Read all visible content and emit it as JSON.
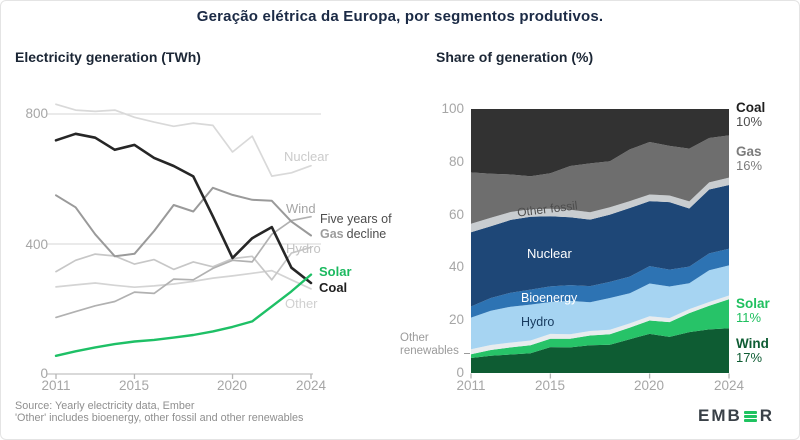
{
  "title": "Geração elétrica da Europa, por segmentos produtivos.",
  "source": {
    "line1": "Source: Yearly electricity data, Ember",
    "line2": "'Other' includes bioenergy, other fossil and other renewables"
  },
  "logo": {
    "prefix": "EMB",
    "suffix": "R",
    "icon": "ember-logo-bars"
  },
  "chart_data": [
    {
      "id": "electricity_generation_twh",
      "type": "line",
      "title": "Electricity generation (TWh)",
      "xlabel": "",
      "ylabel": "TWh",
      "x": [
        2011,
        2012,
        2013,
        2014,
        2015,
        2016,
        2017,
        2018,
        2019,
        2020,
        2021,
        2022,
        2023,
        2024
      ],
      "xticks": [
        2011,
        2015,
        2020,
        2024
      ],
      "yticks": [
        0,
        400,
        800
      ],
      "ylim": [
        0,
        860
      ],
      "grid": "horizontal",
      "legend_position": "inline-right",
      "series": [
        {
          "name": "Nuclear",
          "color": "#d9d9d9",
          "values": [
            830,
            812,
            808,
            812,
            790,
            775,
            762,
            772,
            765,
            683,
            732,
            609,
            619,
            641
          ]
        },
        {
          "name": "Other",
          "color": "#d4d4d4",
          "values": [
            268,
            274,
            280,
            273,
            267,
            271,
            277,
            285,
            295,
            302,
            310,
            318,
            290,
            262
          ]
        },
        {
          "name": "Hydro",
          "color": "#c7c7c7",
          "values": [
            315,
            350,
            369,
            363,
            338,
            352,
            322,
            345,
            330,
            355,
            362,
            290,
            372,
            390
          ]
        },
        {
          "name": "Wind",
          "color": "#b1b1b1",
          "values": [
            174,
            192,
            210,
            223,
            252,
            248,
            292,
            290,
            325,
            350,
            345,
            430,
            472,
            484
          ]
        },
        {
          "name": "Gas",
          "color": "#9a9a9a",
          "values": [
            550,
            513,
            430,
            362,
            370,
            440,
            520,
            500,
            573,
            551,
            536,
            533,
            469,
            426
          ]
        },
        {
          "name": "Coal",
          "color": "#262626",
          "values": [
            719,
            739,
            727,
            690,
            705,
            665,
            640,
            608,
            485,
            357,
            418,
            452,
            327,
            280
          ]
        },
        {
          "name": "Solar",
          "color": "#1ec066",
          "values": [
            56,
            70,
            82,
            92,
            100,
            105,
            112,
            120,
            131,
            145,
            162,
            208,
            254,
            306
          ]
        }
      ],
      "labels": {
        "nuclear": "Nuclear",
        "wind": "Wind",
        "hydro": "Hydro",
        "other": "Other",
        "solar": "Solar",
        "coal": "Coal"
      },
      "annotation": {
        "line1": "Five years of",
        "bold_word": "Gas",
        "line2_rest": "decline"
      }
    },
    {
      "id": "share_of_generation_pct",
      "type": "area",
      "stacking": "percent",
      "title": "Share of generation (%)",
      "x": [
        2011,
        2012,
        2013,
        2014,
        2015,
        2016,
        2017,
        2018,
        2019,
        2020,
        2021,
        2022,
        2023,
        2024
      ],
      "xticks": [
        2011,
        2015,
        2020,
        2024
      ],
      "yticks": [
        0,
        20,
        40,
        60,
        80,
        100
      ],
      "ylim": [
        0,
        100
      ],
      "grid": "off",
      "layers_bottom_to_top": [
        {
          "name": "Wind",
          "color": "#0e5c33",
          "values": [
            5.7,
            6.5,
            7.0,
            7.5,
            9.8,
            9.7,
            10.5,
            10.7,
            12.8,
            14.8,
            13.7,
            15.5,
            16.5,
            17.0
          ]
        },
        {
          "name": "Solar",
          "color": "#27c368",
          "values": [
            1.4,
            2.2,
            2.7,
            3.0,
            3.2,
            3.3,
            3.7,
            4.0,
            4.4,
            5.1,
            5.6,
            7.2,
            9.0,
            11.0
          ]
        },
        {
          "name": "Other renewables",
          "color": "#e8ecee",
          "values": [
            1.9,
            1.9,
            1.8,
            1.8,
            1.8,
            1.7,
            1.7,
            1.7,
            1.6,
            1.6,
            1.5,
            1.5,
            1.4,
            1.4
          ]
        },
        {
          "name": "Hydro",
          "color": "#a6d4f2",
          "values": [
            12.0,
            13.0,
            13.6,
            13.6,
            12.1,
            12.6,
            10.9,
            12.0,
            11.4,
            12.4,
            12.0,
            9.8,
            12.0,
            11.4
          ]
        },
        {
          "name": "Bioenergy",
          "color": "#2d73b3",
          "values": [
            4.2,
            4.8,
            5.3,
            5.7,
            5.9,
            6.0,
            6.1,
            6.1,
            6.3,
            6.6,
            6.4,
            6.3,
            6.4,
            6.3
          ]
        },
        {
          "name": "Nuclear",
          "color": "#1e4777",
          "values": [
            28.1,
            27.2,
            27.6,
            27.6,
            26.6,
            25.7,
            25.2,
            25.5,
            26.0,
            24.6,
            25.6,
            22.0,
            24.2,
            24.2
          ]
        },
        {
          "name": "Other fossil",
          "color": "#c9cdd0",
          "values": [
            3.2,
            3.2,
            3.0,
            2.9,
            2.8,
            2.8,
            2.8,
            2.8,
            2.6,
            2.5,
            2.5,
            2.7,
            2.7,
            2.8
          ]
        },
        {
          "name": "Gas",
          "color": "#6e6e6e",
          "values": [
            19.5,
            16.7,
            14.2,
            12.4,
            13.5,
            16.6,
            18.5,
            17.4,
            19.6,
            19.9,
            18.8,
            20.0,
            16.8,
            16.0
          ]
        },
        {
          "name": "Coal",
          "color": "#323232",
          "values": [
            24.0,
            24.5,
            24.8,
            25.5,
            24.3,
            21.6,
            20.6,
            19.8,
            15.3,
            12.5,
            14.0,
            15.0,
            11.0,
            10.0
          ]
        }
      ],
      "inner_labels": {
        "other_fossil": "Other fossil",
        "nuclear": "Nuclear",
        "bioenergy": "Bioenergy",
        "hydro": "Hydro",
        "other_renewables": "Other renewables"
      },
      "end_labels": [
        {
          "name": "Coal",
          "pct": "10%",
          "name_color": "#1f1f1f",
          "pct_color": "#4d4d4d"
        },
        {
          "name": "Gas",
          "pct": "16%",
          "name_color": "#7c7c7c",
          "pct_color": "#7c7c7c"
        },
        {
          "name": "Solar",
          "pct": "11%",
          "name_color": "#1fc05f",
          "pct_color": "#1fc05f"
        },
        {
          "name": "Wind",
          "pct": "17%",
          "name_color": "#0e5c33",
          "pct_color": "#0e5c33"
        }
      ]
    }
  ]
}
